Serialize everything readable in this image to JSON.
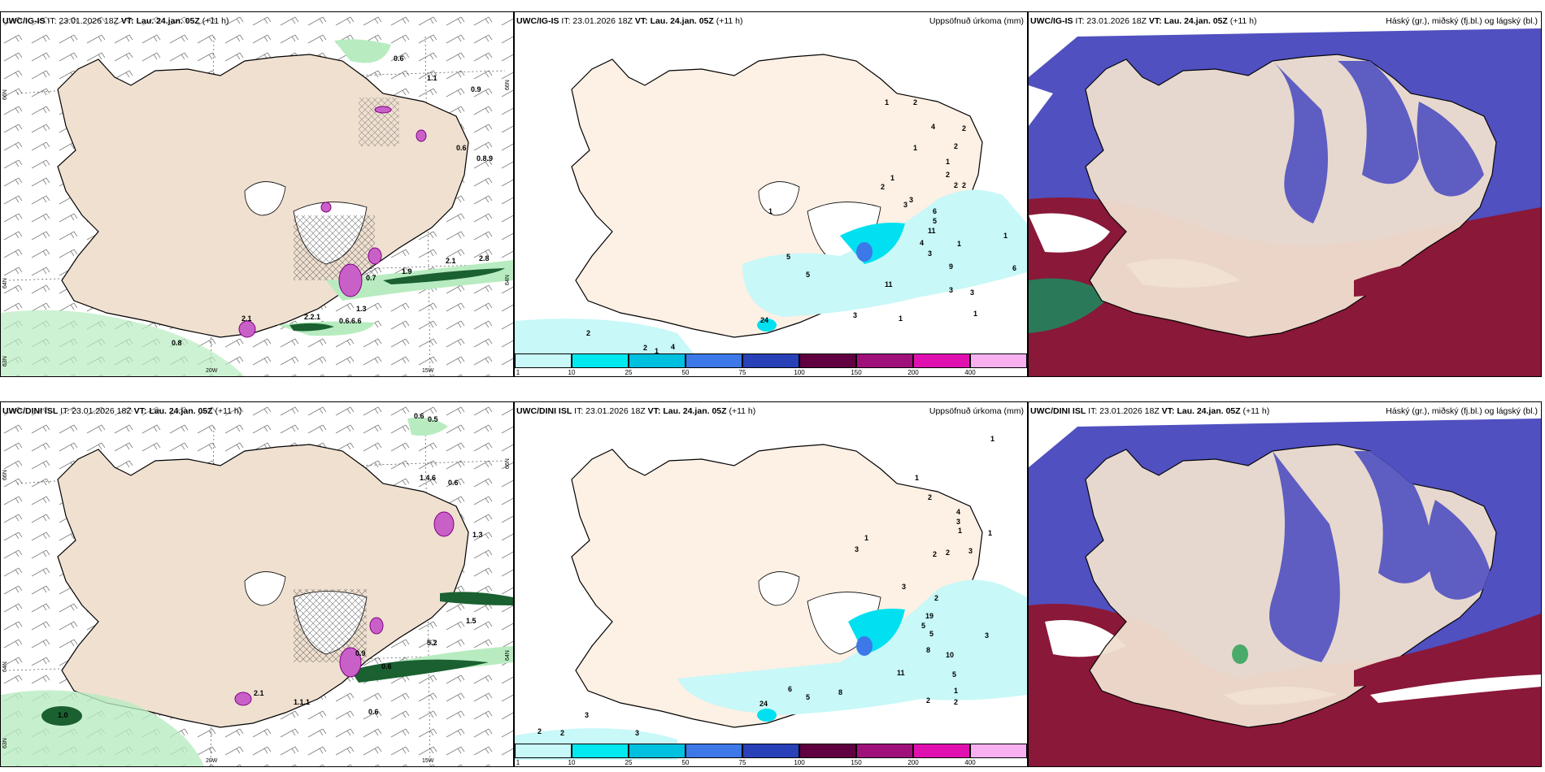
{
  "panels": [
    {
      "model": "UWC/IG-IS",
      "it": "IT: 23.01.2026 18Z",
      "vt": "VT: Lau. 24.jan. 05Z",
      "lead": "(+11 h)",
      "right_title": ""
    },
    {
      "model": "UWC/IG-IS",
      "it": "IT: 23.01.2026 18Z",
      "vt": "VT: Lau. 24.jan. 05Z",
      "lead": "(+11 h)",
      "right_title": "Uppsöfnuð úrkoma (mm)"
    },
    {
      "model": "UWC/IG-IS",
      "it": "IT: 23.01.2026 18Z",
      "vt": "VT: Lau. 24.jan. 05Z",
      "lead": "(+11 h)",
      "right_title": "Háský (gr.), miðský (fj.bl.) og lágský (bl.)"
    },
    {
      "model": "UWC/DINI ISL",
      "it": "IT: 23.01.2026 18Z",
      "vt": "VT: Lau. 24.jan. 05Z",
      "lead": "(+11 h)",
      "right_title": ""
    },
    {
      "model": "UWC/DINI ISL",
      "it": "IT: 23.01.2026 18Z",
      "vt": "VT: Lau. 24.jan. 05Z",
      "lead": "(+11 h)",
      "right_title": "Uppsöfnuð úrkoma (mm)"
    },
    {
      "model": "UWC/DINI ISL",
      "it": "IT: 23.01.2026 18Z",
      "vt": "VT: Lau. 24.jan. 05Z",
      "lead": "(+11 h)",
      "right_title": "Háský (gr.), miðský (fj.bl.) og lágský (bl.)"
    }
  ],
  "colorbar": {
    "colors": [
      "#c8f8f8",
      "#00e8f0",
      "#00c0e0",
      "#3c78e8",
      "#2840b8",
      "#600040",
      "#a0107a",
      "#e010b0",
      "#f8b0f0"
    ],
    "labels": [
      "1",
      "10",
      "25",
      "50",
      "75",
      "100",
      "150",
      "200",
      "400"
    ]
  },
  "axis_labels": {
    "lat66": "66N",
    "lat64": "64N",
    "lat63": "63N",
    "lon20": "20W",
    "lon15": "15W"
  },
  "top_left_labels": [
    "0.6",
    "1.1",
    "0.9",
    "0.6",
    "0.8.9",
    "2.1",
    "2.8",
    "1.9",
    "0.7",
    "1.3",
    "2.2.1",
    "0.6.6.6",
    "2.1",
    "0.8"
  ],
  "bottom_left_labels": [
    "0.6",
    "0.5",
    "1.4.6",
    "0.6",
    "1.3",
    "1.5",
    "5.2",
    "0.9",
    "0.6",
    "2.1",
    "1.1.1",
    "0.6",
    "1.0"
  ],
  "top_mid_labels": [
    "1",
    "2",
    "4",
    "2",
    "1",
    "2",
    "1",
    "1",
    "2",
    "2",
    "3",
    "1",
    "2",
    "2",
    "3",
    "6",
    "5",
    "11",
    "4",
    "3",
    "1",
    "1",
    "5",
    "5",
    "9",
    "6",
    "11",
    "3",
    "3",
    "1",
    "3",
    "1",
    "2",
    "2",
    "1",
    "4",
    "24"
  ],
  "bottom_mid_labels": [
    "1",
    "1",
    "2",
    "4",
    "3",
    "1",
    "1",
    "1",
    "3",
    "2",
    "2",
    "3",
    "3",
    "2",
    "19",
    "5",
    "5",
    "8",
    "10",
    "11",
    "3",
    "5",
    "1",
    "2",
    "2",
    "6",
    "5",
    "8",
    "24",
    "3",
    "2",
    "2",
    "3"
  ]
}
